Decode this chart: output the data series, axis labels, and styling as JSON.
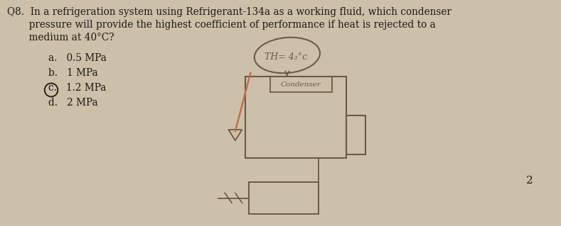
{
  "bg_color": "#cdc0a8",
  "question_text_line1": "Q8.  In a refrigeration system using Refrigerant-134a as a working fluid, which condenser",
  "question_text_line2": "       pressure will provide the highest coefficient of performance if heat is rejected to a",
  "question_text_line3": "       medium at 40°C?",
  "options": [
    "a.   0.5 MPa",
    "b.   1 MPa",
    "c.   1.2 MPa",
    "d.   2 MPa"
  ],
  "circled_option_idx": 2,
  "page_number": "2",
  "sketch_color": "#6b5a45",
  "text_color": "#1a1a1a",
  "font_size": 9.8,
  "th_label": "TH= 4₂°c",
  "condenser_label": "Condenser"
}
